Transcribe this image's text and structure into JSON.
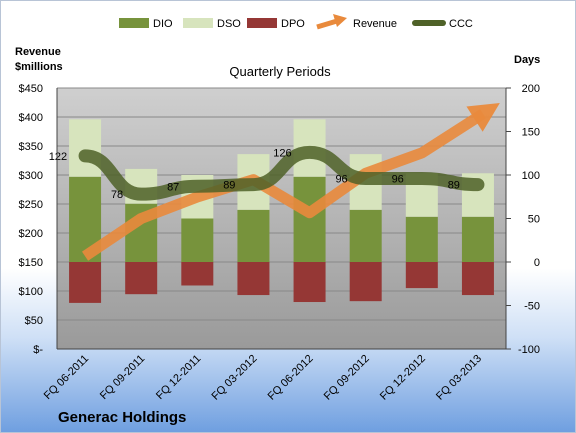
{
  "chart_data": {
    "type": "bar",
    "title": "Quarterly Periods",
    "company": "Generac Holdings",
    "y_left_label": [
      "Revenue",
      "$millions"
    ],
    "y_right_label": "Days",
    "y_left_ticks": [
      "$450",
      "$400",
      "$350",
      "$300",
      "$250",
      "$200",
      "$150",
      "$100",
      "$50",
      "$-"
    ],
    "y_right_ticks": [
      "200",
      "150",
      "100",
      "50",
      "0",
      "-50",
      "-100"
    ],
    "y_left_range": [
      0,
      450
    ],
    "y_right_range": [
      -100,
      200
    ],
    "grid": true,
    "legend_position": "top",
    "categories": [
      "FQ 06-2011",
      "FQ 09-2011",
      "FQ 12-2011",
      "FQ 03-2012",
      "FQ 06-2012",
      "FQ 09-2012",
      "FQ 12-2012",
      "FQ 03-2013"
    ],
    "series": [
      {
        "name": "DIO",
        "axis": "right",
        "kind": "stacked-bar",
        "color": "#77933c",
        "values": [
          98,
          67,
          50,
          60,
          98,
          60,
          52,
          52
        ]
      },
      {
        "name": "DSO",
        "axis": "right",
        "kind": "stacked-bar",
        "color": "#d7e4bd",
        "values": [
          66,
          40,
          50,
          64,
          66,
          64,
          50,
          50
        ]
      },
      {
        "name": "DPO",
        "axis": "right",
        "kind": "negative-bar",
        "color": "#953735",
        "values": [
          -47,
          -37,
          -27,
          -38,
          -46,
          -45,
          -30,
          -38
        ]
      },
      {
        "name": "Revenue",
        "axis": "left",
        "kind": "arrow-line",
        "color": "#e98a3c",
        "values": [
          160,
          225,
          262,
          292,
          235,
          303,
          338,
          400
        ]
      },
      {
        "name": "CCC",
        "axis": "right",
        "kind": "thick-line",
        "color": "#4f6228",
        "values": [
          122,
          78,
          87,
          89,
          126,
          96,
          96,
          89
        ],
        "labels": [
          "122",
          "78",
          "87",
          "89",
          "126",
          "96",
          "96",
          "89"
        ]
      }
    ]
  },
  "colors": {
    "plot_bg_top": "#cfcfcf",
    "plot_bg_bottom": "#9a9a9a",
    "grid": "#888888"
  }
}
